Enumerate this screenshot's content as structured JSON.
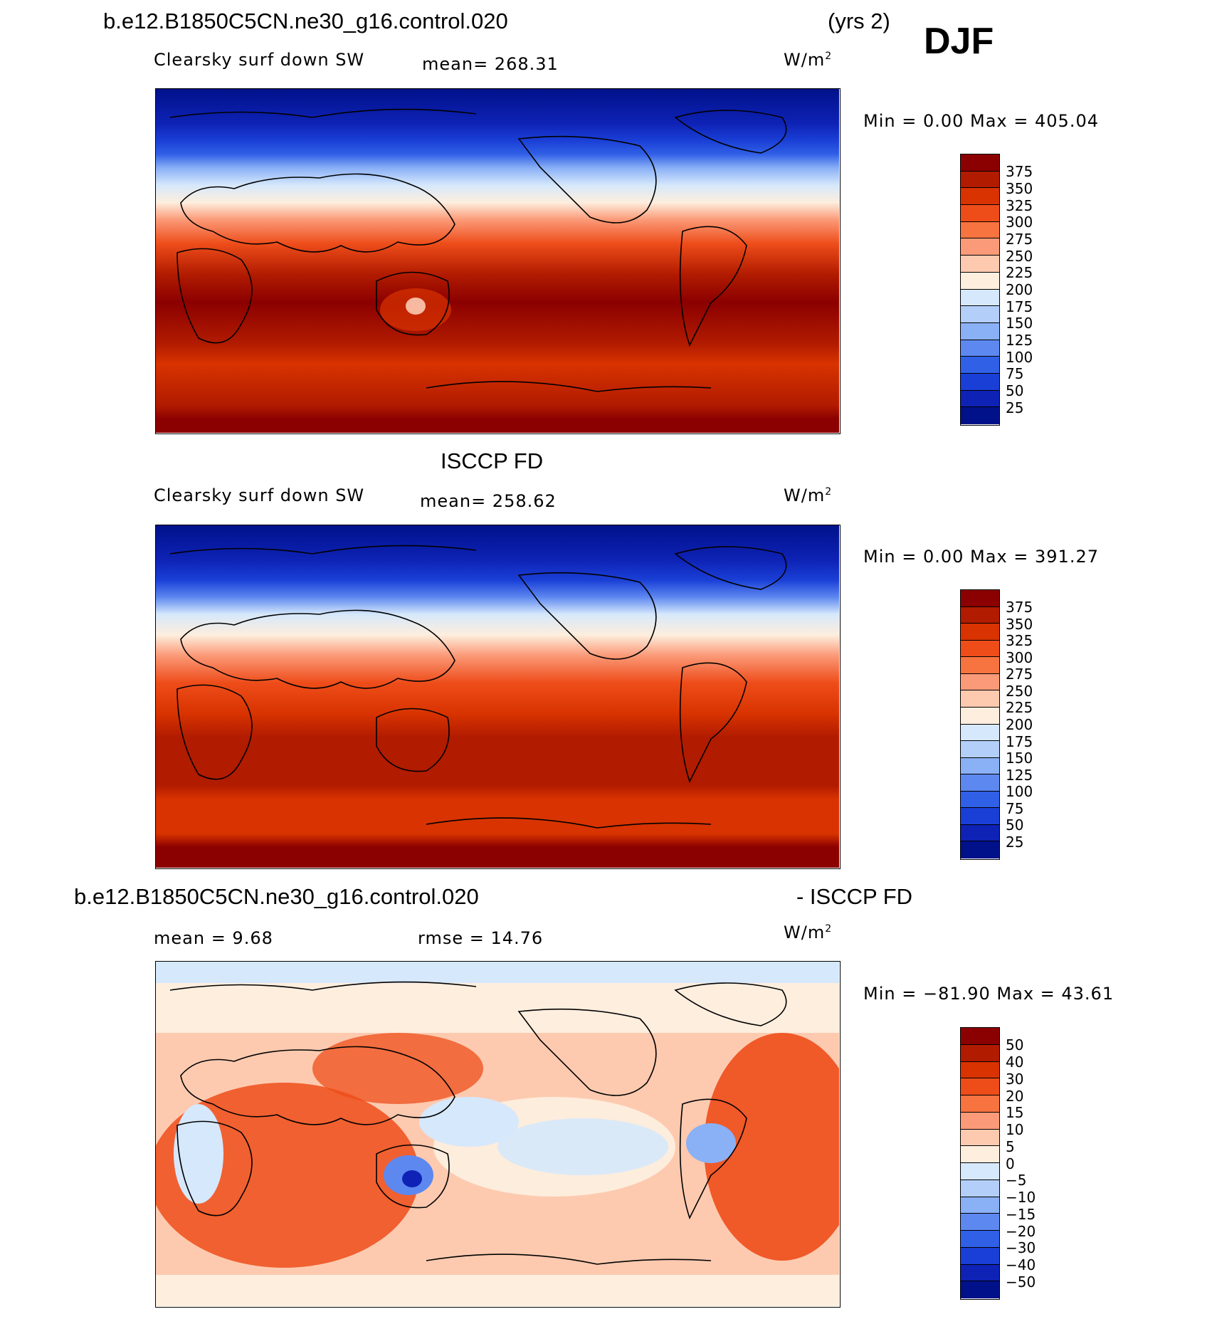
{
  "header": {
    "case_name": "b.e12.B1850C5CN.ne30_g16.control.020",
    "years": "(yrs 2)",
    "season": "DJF"
  },
  "panels": [
    {
      "id": "model",
      "title": "",
      "variable": "Clearsky surf down SW",
      "mean_label": "mean= 268.31",
      "units": "W/m",
      "units_sup": "2",
      "minmax": "Min =    0.00 Max = 405.04",
      "colorbar": {
        "labels": [
          "375",
          "350",
          "325",
          "300",
          "275",
          "250",
          "225",
          "200",
          "175",
          "150",
          "125",
          "100",
          "75",
          "50",
          "25"
        ],
        "colors": [
          "#8b0000",
          "#b11b00",
          "#d83300",
          "#ee4d1a",
          "#f7733f",
          "#fb9a78",
          "#fdcab0",
          "#fdeede",
          "#d6e8fb",
          "#b3cff9",
          "#8ab0f6",
          "#5d88f0",
          "#3060e6",
          "#1a3fd6",
          "#0e22b5",
          "#00118a"
        ]
      }
    },
    {
      "id": "obs",
      "title": "ISCCP FD",
      "variable": "Clearsky surf down SW",
      "mean_label": "mean= 258.62",
      "units": "W/m",
      "units_sup": "2",
      "minmax": "Min =    0.00 Max = 391.27",
      "colorbar": {
        "labels": [
          "375",
          "350",
          "325",
          "300",
          "275",
          "250",
          "225",
          "200",
          "175",
          "150",
          "125",
          "100",
          "75",
          "50",
          "25"
        ],
        "colors": [
          "#8b0000",
          "#b11b00",
          "#d83300",
          "#ee4d1a",
          "#f7733f",
          "#fb9a78",
          "#fdcab0",
          "#fdeede",
          "#d6e8fb",
          "#b3cff9",
          "#8ab0f6",
          "#5d88f0",
          "#3060e6",
          "#1a3fd6",
          "#0e22b5",
          "#00118a"
        ]
      }
    },
    {
      "id": "diff",
      "title_left": "b.e12.B1850C5CN.ne30_g16.control.020",
      "title_right": "- ISCCP FD",
      "mean_label": "mean =    9.68",
      "rmse_label": "rmse =   14.76",
      "units": "W/m",
      "units_sup": "2",
      "minmax": "Min = −81.90 Max =   43.61",
      "colorbar": {
        "labels": [
          "50",
          "40",
          "30",
          "20",
          "15",
          "10",
          "5",
          "0",
          "−5",
          "−10",
          "−15",
          "−20",
          "−30",
          "−40",
          "−50"
        ],
        "colors": [
          "#8b0000",
          "#b11b00",
          "#d83300",
          "#ee4d1a",
          "#f7733f",
          "#fb9a78",
          "#fdcab0",
          "#fdeede",
          "#d6e8fb",
          "#b3cff9",
          "#8ab0f6",
          "#5d88f0",
          "#3060e6",
          "#1a3fd6",
          "#0e22b5",
          "#00118a"
        ]
      }
    }
  ]
}
